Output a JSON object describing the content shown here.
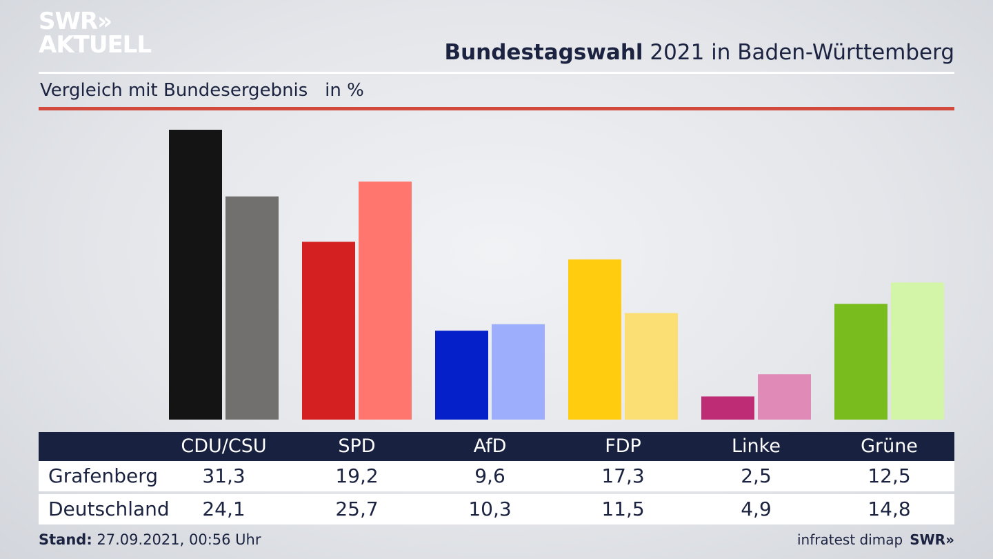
{
  "logo": {
    "line1": "SWR»",
    "line2": "AKTUELL"
  },
  "header": {
    "title_bold": "Bundestagswahl",
    "title_rest": " 2021 in Baden-Württemberg",
    "subtitle": "Vergleich mit Bundesergebnis   in %"
  },
  "chart_data": {
    "type": "bar",
    "categories": [
      "CDU/CSU",
      "SPD",
      "AfD",
      "FDP",
      "Linke",
      "Grüne"
    ],
    "series": [
      {
        "name": "Grafenberg",
        "values": [
          31.3,
          19.2,
          9.6,
          17.3,
          2.5,
          12.5
        ]
      },
      {
        "name": "Deutschland",
        "values": [
          24.1,
          25.7,
          10.3,
          11.5,
          4.9,
          14.8
        ]
      }
    ],
    "colors": {
      "Grafenberg": [
        "#141414",
        "#d42020",
        "#0520c8",
        "#ffcc10",
        "#bf2c76",
        "#78bc1e"
      ],
      "Deutschland": [
        "#72706e",
        "#fe766e",
        "#9daffc",
        "#fbdf74",
        "#e08ab8",
        "#d3f5a8"
      ]
    },
    "ylim": [
      0,
      31.3
    ],
    "grid": false,
    "title": "Bundestagswahl 2021 in Baden-Württemberg",
    "subtitle": "Vergleich mit Bundesergebnis   in %"
  },
  "table": {
    "headers": [
      "CDU/CSU",
      "SPD",
      "AfD",
      "FDP",
      "Linke",
      "Grüne"
    ],
    "rows": [
      {
        "label": "Grafenberg",
        "values": [
          "31,3",
          "19,2",
          "9,6",
          "17,3",
          "2,5",
          "12,5"
        ]
      },
      {
        "label": "Deutschland",
        "values": [
          "24,1",
          "25,7",
          "10,3",
          "11,5",
          "4,9",
          "14,8"
        ]
      }
    ]
  },
  "footer": {
    "stand_label": "Stand:",
    "stand_value": " 27.09.2021, 00:56 Uhr",
    "source": "infratest dimap",
    "brand": "SWR»"
  }
}
